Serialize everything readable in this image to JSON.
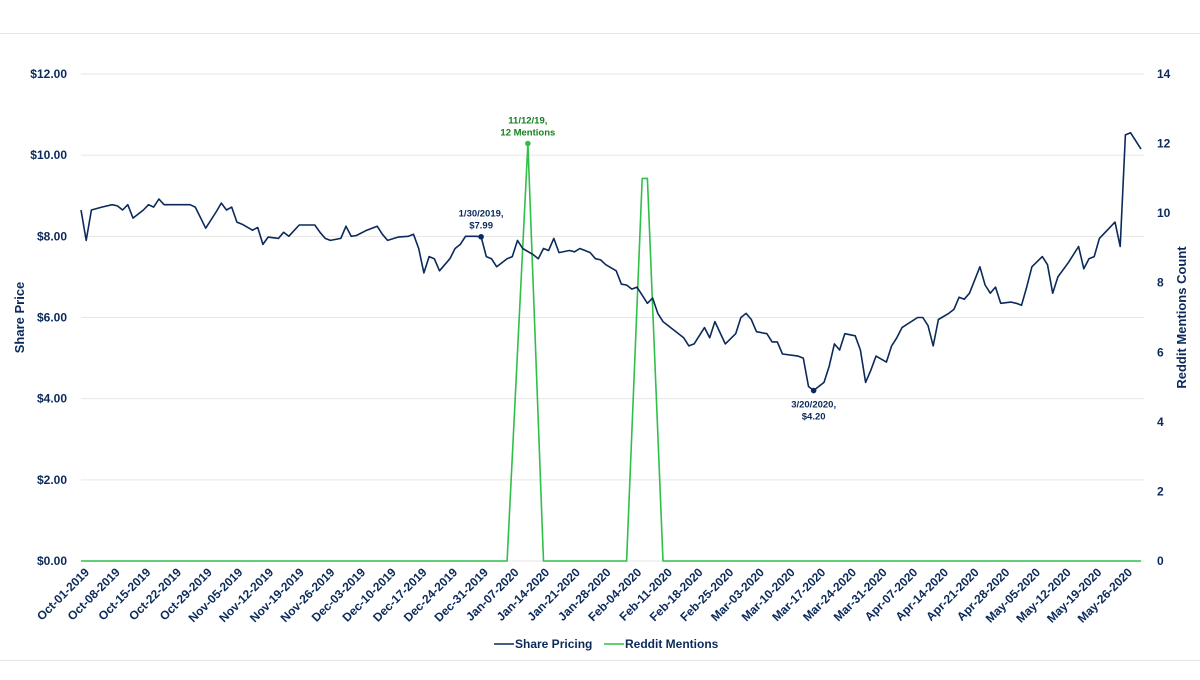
{
  "chart_data": {
    "type": "line",
    "colors": {
      "share": "#0b2a5b",
      "reddit": "#2fbf4a",
      "reddit_label": "#15801f",
      "grid": "#e6e6e6",
      "text": "#0b2a5b"
    },
    "y_left": {
      "label": "Share Price",
      "ticks": [
        "$0.00",
        "$2.00",
        "$4.00",
        "$6.00",
        "$8.00",
        "$10.00",
        "$12.00"
      ],
      "range": [
        0,
        12
      ]
    },
    "y_right": {
      "label": "Reddit Mentions Count",
      "ticks": [
        "0",
        "2",
        "4",
        "6",
        "8",
        "10",
        "12",
        "14"
      ],
      "range": [
        0,
        14
      ]
    },
    "x_ticks": [
      "Oct-01-2019",
      "Oct-08-2019",
      "Oct-15-2019",
      "Oct-22-2019",
      "Oct-29-2019",
      "Nov-05-2019",
      "Nov-12-2019",
      "Nov-19-2019",
      "Nov-26-2019",
      "Dec-03-2019",
      "Dec-10-2019",
      "Dec-17-2019",
      "Dec-24-2019",
      "Dec-31-2019",
      "Jan-07-2020",
      "Jan-14-2020",
      "Jan-21-2020",
      "Jan-28-2020",
      "Feb-04-2020",
      "Feb-11-2020",
      "Feb-18-2020",
      "Feb-25-2020",
      "Mar-03-2020",
      "Mar-10-2020",
      "Mar-17-2020",
      "Mar-24-2020",
      "Mar-31-2020",
      "Apr-07-2020",
      "Apr-14-2020",
      "Apr-21-2020",
      "Apr-28-2020",
      "May-05-2020",
      "May-12-2020",
      "May-19-2020",
      "May-26-2020"
    ],
    "series": [
      {
        "name": "Share Pricing",
        "points": [
          [
            0,
            8.65
          ],
          [
            1,
            7.9
          ],
          [
            2,
            8.65
          ],
          [
            4,
            8.72
          ],
          [
            6,
            8.78
          ],
          [
            7,
            8.75
          ],
          [
            8,
            8.65
          ],
          [
            9,
            8.78
          ],
          [
            10,
            8.45
          ],
          [
            12,
            8.65
          ],
          [
            13,
            8.78
          ],
          [
            14,
            8.72
          ],
          [
            15,
            8.92
          ],
          [
            16,
            8.78
          ],
          [
            19,
            8.78
          ],
          [
            21,
            8.78
          ],
          [
            22,
            8.72
          ],
          [
            24,
            8.2
          ],
          [
            26,
            8.6
          ],
          [
            27,
            8.82
          ],
          [
            28,
            8.65
          ],
          [
            29,
            8.72
          ],
          [
            30,
            8.35
          ],
          [
            31,
            8.3
          ],
          [
            33,
            8.15
          ],
          [
            34,
            8.22
          ],
          [
            35,
            7.8
          ],
          [
            36,
            7.98
          ],
          [
            38,
            7.95
          ],
          [
            39,
            8.1
          ],
          [
            40,
            8.0
          ],
          [
            42,
            8.28
          ],
          [
            45,
            8.28
          ],
          [
            46,
            8.1
          ],
          [
            47,
            7.95
          ],
          [
            48,
            7.9
          ],
          [
            50,
            7.95
          ],
          [
            51,
            8.25
          ],
          [
            52,
            8.0
          ],
          [
            53,
            8.02
          ],
          [
            55,
            8.15
          ],
          [
            57,
            8.25
          ],
          [
            58,
            8.05
          ],
          [
            59,
            7.9
          ],
          [
            61,
            7.98
          ],
          [
            63,
            8.0
          ],
          [
            64,
            8.05
          ],
          [
            65,
            7.7
          ],
          [
            66,
            7.1
          ],
          [
            67,
            7.5
          ],
          [
            68,
            7.45
          ],
          [
            69,
            7.15
          ],
          [
            71,
            7.45
          ],
          [
            72,
            7.7
          ],
          [
            73,
            7.8
          ],
          [
            74,
            8.0
          ],
          [
            76,
            8.0
          ],
          [
            77,
            7.99
          ],
          [
            78,
            7.5
          ],
          [
            79,
            7.45
          ],
          [
            80,
            7.25
          ],
          [
            82,
            7.45
          ],
          [
            83,
            7.5
          ],
          [
            84,
            7.9
          ],
          [
            85,
            7.7
          ],
          [
            87,
            7.55
          ],
          [
            88,
            7.45
          ],
          [
            89,
            7.7
          ],
          [
            90,
            7.65
          ],
          [
            91,
            7.95
          ],
          [
            92,
            7.6
          ],
          [
            94,
            7.65
          ],
          [
            95,
            7.62
          ],
          [
            96,
            7.7
          ],
          [
            97,
            7.65
          ],
          [
            98,
            7.6
          ],
          [
            99,
            7.45
          ],
          [
            100,
            7.42
          ],
          [
            101,
            7.3
          ],
          [
            103,
            7.15
          ],
          [
            104,
            6.82
          ],
          [
            105,
            6.8
          ],
          [
            106,
            6.7
          ],
          [
            107,
            6.75
          ],
          [
            108,
            6.55
          ],
          [
            109,
            6.35
          ],
          [
            110,
            6.48
          ],
          [
            111,
            6.1
          ],
          [
            112,
            5.9
          ],
          [
            114,
            5.7
          ],
          [
            116,
            5.5
          ],
          [
            117,
            5.3
          ],
          [
            118,
            5.35
          ],
          [
            120,
            5.75
          ],
          [
            121,
            5.5
          ],
          [
            122,
            5.9
          ],
          [
            124,
            5.35
          ],
          [
            126,
            5.6
          ],
          [
            127,
            6.0
          ],
          [
            128,
            6.1
          ],
          [
            129,
            5.95
          ],
          [
            130,
            5.65
          ],
          [
            132,
            5.6
          ],
          [
            133,
            5.4
          ],
          [
            134,
            5.4
          ],
          [
            135,
            5.1
          ],
          [
            138,
            5.05
          ],
          [
            139,
            5.0
          ],
          [
            140,
            4.3
          ],
          [
            141,
            4.2
          ],
          [
            143,
            4.4
          ],
          [
            144,
            4.8
          ],
          [
            145,
            5.35
          ],
          [
            146,
            5.2
          ],
          [
            147,
            5.6
          ],
          [
            149,
            5.55
          ],
          [
            150,
            5.2
          ],
          [
            151,
            4.4
          ],
          [
            152,
            4.7
          ],
          [
            153,
            5.05
          ],
          [
            155,
            4.9
          ],
          [
            156,
            5.3
          ],
          [
            157,
            5.5
          ],
          [
            158,
            5.75
          ],
          [
            161,
            6.0
          ],
          [
            162,
            6.0
          ],
          [
            163,
            5.8
          ],
          [
            164,
            5.3
          ],
          [
            165,
            5.95
          ],
          [
            167,
            6.1
          ],
          [
            168,
            6.2
          ],
          [
            169,
            6.5
          ],
          [
            170,
            6.45
          ],
          [
            171,
            6.6
          ],
          [
            173,
            7.25
          ],
          [
            174,
            6.8
          ],
          [
            175,
            6.6
          ],
          [
            176,
            6.75
          ],
          [
            177,
            6.35
          ],
          [
            179,
            6.38
          ],
          [
            180,
            6.35
          ],
          [
            181,
            6.3
          ],
          [
            182,
            6.75
          ],
          [
            183,
            7.25
          ],
          [
            185,
            7.5
          ],
          [
            186,
            7.3
          ],
          [
            187,
            6.6
          ],
          [
            188,
            7.0
          ],
          [
            190,
            7.35
          ],
          [
            192,
            7.75
          ],
          [
            193,
            7.2
          ],
          [
            194,
            7.45
          ],
          [
            195,
            7.5
          ],
          [
            196,
            7.95
          ],
          [
            199,
            8.35
          ],
          [
            200,
            7.75
          ],
          [
            201,
            10.5
          ],
          [
            202,
            10.55
          ],
          [
            204,
            10.15
          ]
        ]
      },
      {
        "name": "Reddit Mentions",
        "points": [
          [
            0,
            0
          ],
          [
            82,
            0
          ],
          [
            86,
            12
          ],
          [
            89,
            0
          ],
          [
            105,
            0
          ],
          [
            108,
            11
          ],
          [
            109,
            11
          ],
          [
            112,
            0
          ],
          [
            204,
            0
          ]
        ]
      }
    ],
    "annotations": [
      {
        "lines": [
          "1/30/2019,",
          "$7.99"
        ],
        "point": [
          77,
          7.99
        ],
        "series": "Share Pricing"
      },
      {
        "lines": [
          "3/20/2020,",
          "$4.20"
        ],
        "point": [
          141,
          4.2
        ],
        "series": "Share Pricing"
      },
      {
        "lines": [
          "11/12/19,",
          "12 Mentions"
        ],
        "point": [
          86,
          12
        ],
        "series": "Reddit Mentions"
      }
    ],
    "legend": {
      "position": "bottom",
      "items": [
        "Share Pricing",
        "Reddit Mentions"
      ]
    },
    "grid": true
  }
}
